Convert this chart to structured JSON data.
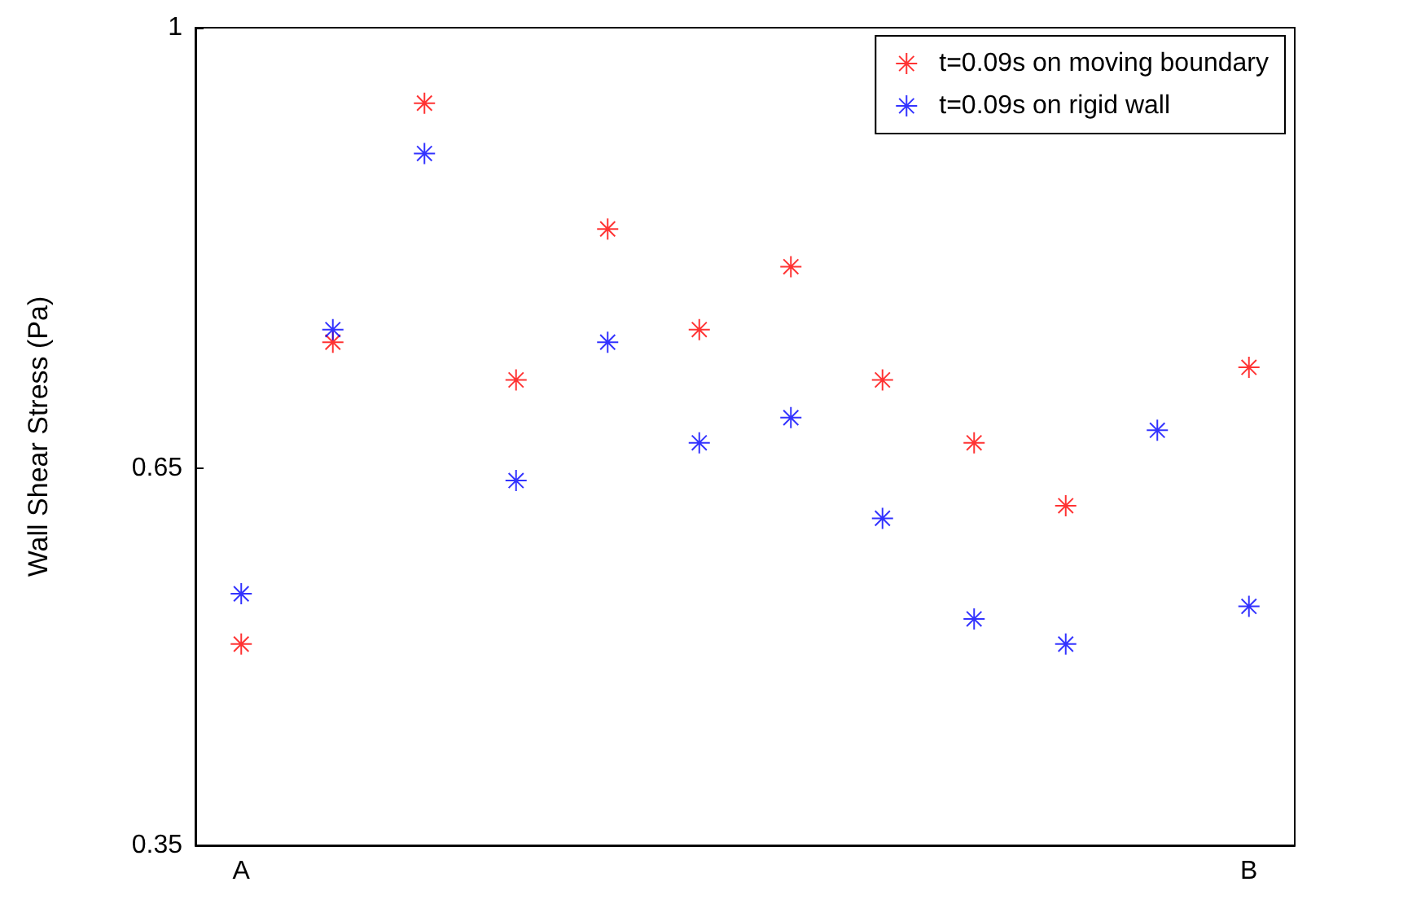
{
  "chart_data": {
    "type": "scatter",
    "ylabel": "Wall Shear Stress (Pa)",
    "categories": [
      "A",
      null,
      null,
      null,
      null,
      null,
      null,
      null,
      null,
      null,
      null,
      "B"
    ],
    "series": [
      {
        "name": "t=0.09s on moving boundary",
        "color": "#ff0000",
        "values": [
          0.51,
          0.75,
          0.94,
          0.72,
          0.84,
          0.76,
          0.81,
          0.72,
          0.67,
          0.62,
          null,
          0.73
        ]
      },
      {
        "name": "t=0.09s on rigid wall",
        "color": "#0000ff",
        "values": [
          0.55,
          0.76,
          0.9,
          0.64,
          0.75,
          0.67,
          0.69,
          0.61,
          0.53,
          0.51,
          0.68,
          0.54
        ]
      }
    ],
    "ylim": [
      0.35,
      1
    ],
    "yticks": [
      0.35,
      0.65,
      1
    ],
    "grid": false,
    "legend": "top right",
    "marker": "cross"
  }
}
